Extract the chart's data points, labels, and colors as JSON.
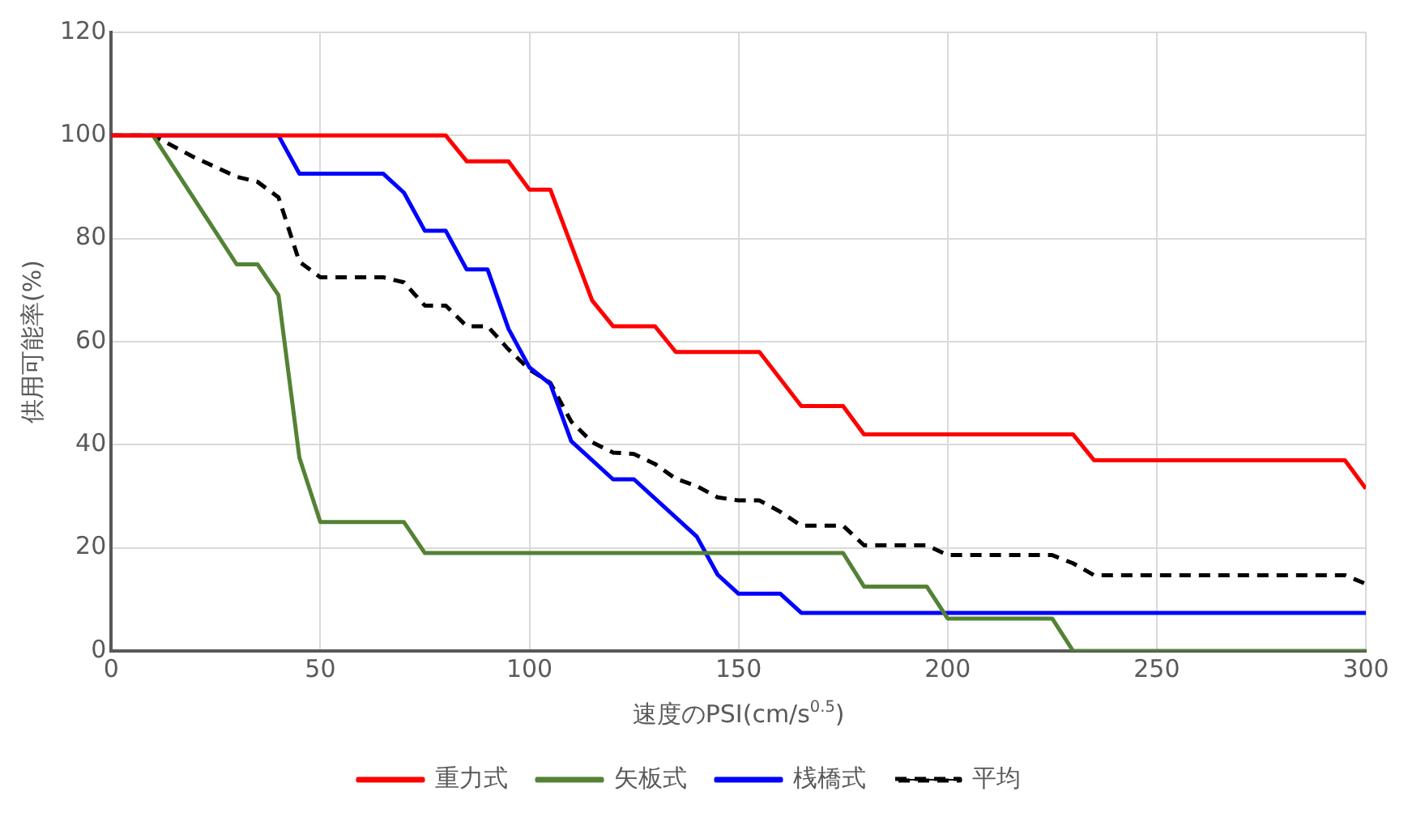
{
  "chart_data": {
    "type": "line",
    "xlabel": "速度のPSI(cm/s$^{0.5}$)",
    "ylabel": "供用可能率(%)",
    "xlim": [
      0,
      300
    ],
    "xticks": [
      0,
      50,
      100,
      150,
      200,
      250,
      300
    ],
    "ylim": [
      0,
      120
    ],
    "yticks": [
      0,
      20,
      40,
      60,
      80,
      100,
      120
    ],
    "grid": true,
    "legend": "bottom",
    "marker": "none",
    "series": [
      {
        "name": "重力式",
        "color": "#ff0000",
        "line_style": "solid",
        "x": [
          0,
          80,
          85,
          95,
          100,
          105,
          115,
          120,
          130,
          135,
          155,
          165,
          175,
          180,
          230,
          235,
          295,
          300
        ],
        "values": [
          100,
          100,
          95,
          95,
          89.5,
          89.5,
          68,
          63,
          63,
          58,
          58,
          47.5,
          47.5,
          42,
          42,
          37,
          37,
          31.5
        ]
      },
      {
        "name": "矢板式",
        "color": "#548235",
        "line_style": "solid",
        "x": [
          0,
          10,
          30,
          35,
          40,
          45,
          50,
          70,
          75,
          175,
          180,
          195,
          200,
          225,
          230,
          300
        ],
        "values": [
          100,
          100,
          75,
          75,
          69,
          37.5,
          25,
          25,
          19,
          19,
          12.5,
          12.5,
          6.3,
          6.3,
          0,
          0
        ]
      },
      {
        "name": "桟橋式",
        "color": "#0000ff",
        "line_style": "solid",
        "x": [
          0,
          40,
          45,
          65,
          70,
          75,
          80,
          85,
          90,
          95,
          100,
          105,
          110,
          120,
          125,
          140,
          145,
          150,
          160,
          165,
          300
        ],
        "values": [
          100,
          100,
          92.6,
          92.6,
          88.9,
          81.5,
          81.5,
          74,
          74,
          62.5,
          55,
          51.8,
          40.7,
          33.3,
          33.3,
          22.2,
          14.8,
          11.1,
          11.1,
          7.4,
          7.4
        ]
      },
      {
        "name": "平均",
        "color": "#000000",
        "line_style": "dashed",
        "x": [
          0,
          10,
          20,
          30,
          35,
          40,
          45,
          50,
          65,
          70,
          75,
          80,
          85,
          90,
          95,
          100,
          105,
          110,
          115,
          120,
          125,
          130,
          135,
          140,
          145,
          150,
          155,
          160,
          165,
          175,
          180,
          195,
          200,
          225,
          230,
          235,
          295,
          300
        ],
        "values": [
          100,
          100,
          95.7,
          92,
          91,
          88,
          75.5,
          72.5,
          72.5,
          71.5,
          67,
          67,
          63,
          63,
          58.5,
          54.6,
          52,
          44.5,
          40.5,
          38.5,
          38.2,
          36.3,
          33.4,
          32,
          29.8,
          29.2,
          29.2,
          27,
          24.3,
          24.3,
          20.5,
          20.5,
          18.6,
          18.6,
          17,
          14.7,
          14.7,
          13
        ]
      }
    ]
  }
}
